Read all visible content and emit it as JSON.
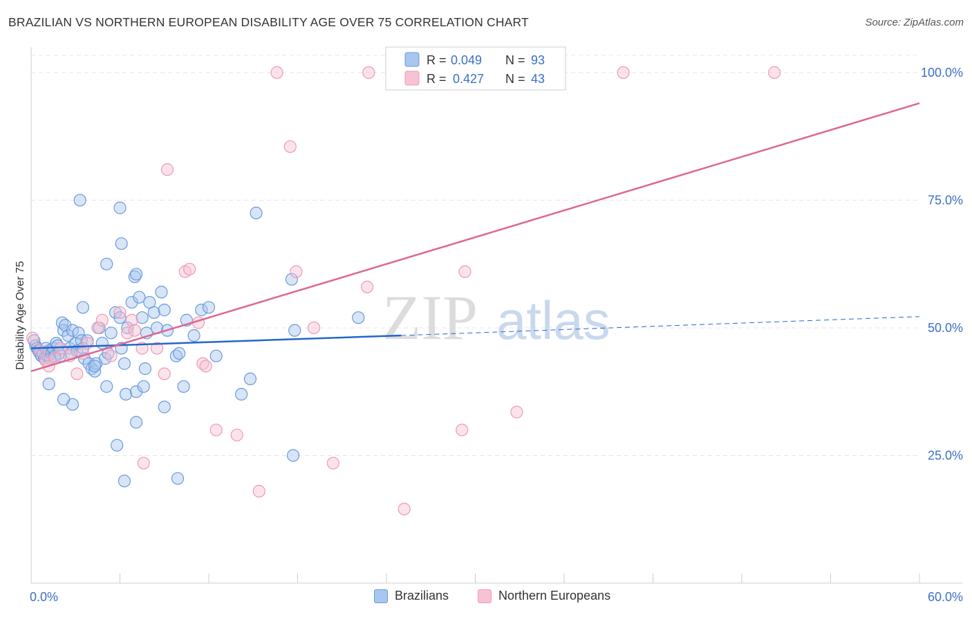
{
  "title": "BRAZILIAN VS NORTHERN EUROPEAN DISABILITY AGE OVER 75 CORRELATION CHART",
  "source": "Source: ZipAtlas.com",
  "watermark": {
    "zip": "ZIP",
    "atlas": "atlas"
  },
  "chart_data": {
    "type": "scatter",
    "title": "BRAZILIAN VS NORTHERN EUROPEAN DISABILITY AGE OVER 75 CORRELATION CHART",
    "xlabel": "",
    "ylabel": "Disability Age Over 75",
    "xlim": [
      0,
      60
    ],
    "ylim": [
      0,
      105
    ],
    "x_tick_labels": [
      "0.0%",
      "60.0%"
    ],
    "y_ticks": [
      25,
      50,
      75,
      100
    ],
    "y_tick_labels": [
      "25.0%",
      "50.0%",
      "75.0%",
      "100.0%"
    ],
    "grid": true,
    "legend_placement": "top-center",
    "legend": [
      {
        "r_label": "R =",
        "r_value": "0.049",
        "n_label": "N =",
        "n_value": "93"
      },
      {
        "r_label": "R =",
        "r_value": "0.427",
        "n_label": "N =",
        "n_value": "43"
      }
    ],
    "series": [
      {
        "name": "Brazilians",
        "color": "#6699dd",
        "fill": "#a8c6ee",
        "line_color": "#2266cc",
        "trend": {
          "x0": 0,
          "y0": 46.0,
          "x1": 25,
          "y1": 48.5,
          "dashed_to_x": 60,
          "dashed_to_y": 52.2
        },
        "points": [
          [
            0.2,
            47.5
          ],
          [
            0.3,
            46.5
          ],
          [
            0.4,
            46
          ],
          [
            0.5,
            45.5
          ],
          [
            0.6,
            45
          ],
          [
            0.7,
            44.5
          ],
          [
            0.8,
            45
          ],
          [
            0.9,
            44
          ],
          [
            1.0,
            46
          ],
          [
            1.1,
            44.5
          ],
          [
            1.2,
            45.5
          ],
          [
            1.3,
            44
          ],
          [
            1.4,
            45
          ],
          [
            1.5,
            46
          ],
          [
            1.6,
            44.5
          ],
          [
            1.7,
            47
          ],
          [
            1.8,
            46.5
          ],
          [
            1.9,
            45
          ],
          [
            2.0,
            44.5
          ],
          [
            2.1,
            51
          ],
          [
            2.2,
            49.5
          ],
          [
            2.3,
            50.5
          ],
          [
            2.5,
            48.5
          ],
          [
            2.6,
            46
          ],
          [
            2.7,
            45
          ],
          [
            2.8,
            49.5
          ],
          [
            3.0,
            47
          ],
          [
            3.1,
            45.5
          ],
          [
            3.2,
            49
          ],
          [
            3.4,
            47.5
          ],
          [
            3.5,
            46
          ],
          [
            3.6,
            44
          ],
          [
            3.8,
            47.5
          ],
          [
            3.9,
            43
          ],
          [
            4.1,
            42
          ],
          [
            4.3,
            41.5
          ],
          [
            4.4,
            43
          ],
          [
            4.6,
            50
          ],
          [
            4.8,
            47
          ],
          [
            5.0,
            44
          ],
          [
            5.2,
            45
          ],
          [
            5.4,
            49
          ],
          [
            5.7,
            53
          ],
          [
            6.0,
            52
          ],
          [
            6.1,
            46
          ],
          [
            6.3,
            43
          ],
          [
            6.5,
            50
          ],
          [
            6.8,
            55
          ],
          [
            7.0,
            60
          ],
          [
            7.3,
            56
          ],
          [
            7.5,
            52
          ],
          [
            7.8,
            49
          ],
          [
            8.0,
            55
          ],
          [
            8.3,
            53
          ],
          [
            8.5,
            50
          ],
          [
            8.8,
            57
          ],
          [
            9.0,
            53.5
          ],
          [
            9.2,
            49.5
          ],
          [
            9.8,
            44.5
          ],
          [
            10.0,
            45
          ],
          [
            10.5,
            51.5
          ],
          [
            11.0,
            48.5
          ],
          [
            11.5,
            53.5
          ],
          [
            12.0,
            54
          ],
          [
            12.5,
            44.5
          ],
          [
            3.3,
            75
          ],
          [
            6.0,
            73.5
          ],
          [
            6.1,
            66.5
          ],
          [
            5.1,
            62.5
          ],
          [
            7.1,
            60.5
          ],
          [
            15.2,
            72.5
          ],
          [
            17.6,
            59.5
          ],
          [
            22.1,
            52
          ],
          [
            17.8,
            49.5
          ],
          [
            3.5,
            54
          ],
          [
            1.2,
            39
          ],
          [
            2.8,
            35
          ],
          [
            2.2,
            36
          ],
          [
            5.1,
            38.5
          ],
          [
            6.4,
            37
          ],
          [
            7.1,
            37.5
          ],
          [
            7.6,
            38.5
          ],
          [
            7.7,
            42
          ],
          [
            9.0,
            34.5
          ],
          [
            10.3,
            38.5
          ],
          [
            14.2,
            37
          ],
          [
            14.8,
            40
          ],
          [
            7.1,
            31.5
          ],
          [
            5.8,
            27
          ],
          [
            6.3,
            20
          ],
          [
            9.9,
            20.5
          ],
          [
            17.7,
            25
          ],
          [
            4.3,
            42.5
          ]
        ]
      },
      {
        "name": "Northern Europeans",
        "color": "#ee99b3",
        "fill": "#f7c2d3",
        "line_color": "#dd6690",
        "trend": {
          "x0": 0,
          "y0": 41.5,
          "x1": 60,
          "y1": 94.0
        },
        "points": [
          [
            0.1,
            48
          ],
          [
            0.6,
            45.5
          ],
          [
            1.0,
            43.5
          ],
          [
            1.2,
            42.5
          ],
          [
            1.6,
            44
          ],
          [
            2.0,
            46
          ],
          [
            2.6,
            44.5
          ],
          [
            3.1,
            41
          ],
          [
            3.5,
            45
          ],
          [
            3.8,
            47
          ],
          [
            4.5,
            50
          ],
          [
            4.8,
            51.5
          ],
          [
            5.4,
            44.5
          ],
          [
            6.0,
            53
          ],
          [
            6.5,
            49
          ],
          [
            6.8,
            51.5
          ],
          [
            7.0,
            49.5
          ],
          [
            7.5,
            46
          ],
          [
            8.5,
            46
          ],
          [
            9.0,
            41
          ],
          [
            9.2,
            81
          ],
          [
            10.4,
            61
          ],
          [
            10.7,
            61.5
          ],
          [
            11.3,
            51
          ],
          [
            11.6,
            43
          ],
          [
            11.8,
            42.5
          ],
          [
            12.5,
            30
          ],
          [
            13.9,
            29
          ],
          [
            15.4,
            18
          ],
          [
            16.6,
            100
          ],
          [
            17.5,
            85.5
          ],
          [
            17.9,
            61
          ],
          [
            19.1,
            50
          ],
          [
            20.4,
            23.5
          ],
          [
            22.7,
            58
          ],
          [
            22.8,
            100
          ],
          [
            25.2,
            14.5
          ],
          [
            29.1,
            30
          ],
          [
            29.3,
            61
          ],
          [
            32.8,
            33.5
          ],
          [
            40.0,
            100
          ],
          [
            50.2,
            100
          ],
          [
            7.6,
            23.5
          ]
        ]
      }
    ]
  }
}
